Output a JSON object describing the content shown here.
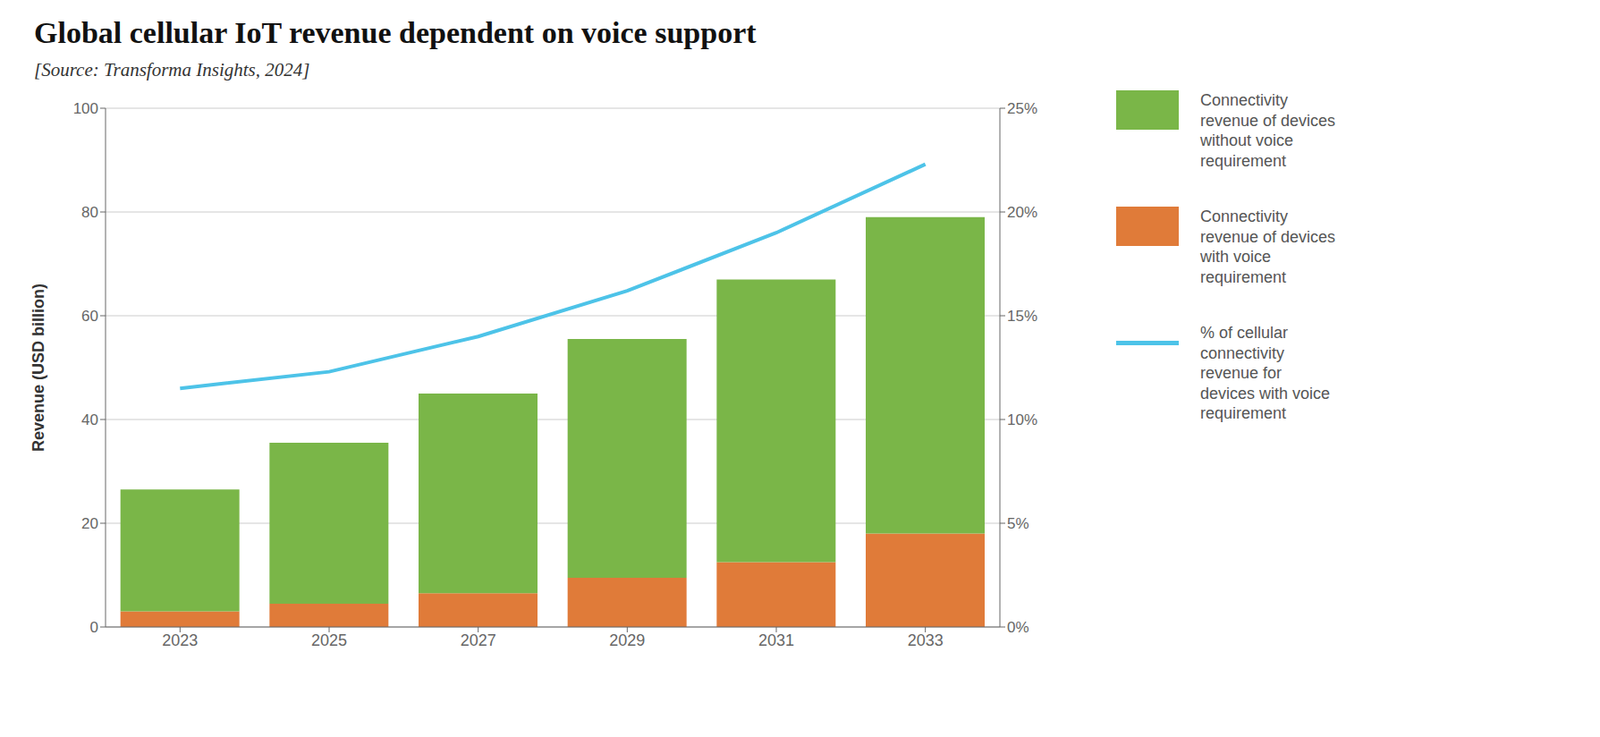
{
  "chart_data": {
    "type": "bar",
    "title": "Global cellular IoT revenue dependent on voice support",
    "subtitle": "[Source: Transforma Insights, 2024]",
    "categories": [
      "2023",
      "2025",
      "2027",
      "2029",
      "2031",
      "2033"
    ],
    "series": [
      {
        "name": "Connectivity\nrevenue of devices\nwithout voice\nrequirement",
        "color": "#7ab648",
        "type": "bar",
        "values": [
          23.5,
          31.0,
          38.5,
          46.0,
          54.5,
          61.0
        ]
      },
      {
        "name": "Connectivity\nrevenue of devices\nwith voice\nrequirement",
        "color": "#e07b39",
        "type": "bar",
        "values": [
          3.0,
          4.5,
          6.5,
          9.5,
          12.5,
          18.0
        ]
      },
      {
        "name": "% of cellular\nconnectivity\nrevenue for\ndevices with voice\nrequirement",
        "color": "#4dc3e8",
        "type": "line",
        "axis": "y2",
        "values": [
          11.5,
          12.3,
          14.0,
          16.2,
          19.0,
          22.3
        ]
      }
    ],
    "stacked": true,
    "ylabel": "Revenue (USD billion)",
    "ylim": [
      0,
      100
    ],
    "yticks": [
      0,
      20,
      40,
      60,
      80,
      100
    ],
    "y2lim": [
      0,
      25
    ],
    "y2ticks": [
      {
        "value": 0,
        "label": "0%"
      },
      {
        "value": 5,
        "label": "5%"
      },
      {
        "value": 10,
        "label": "10%"
      },
      {
        "value": 15,
        "label": "15%"
      },
      {
        "value": 20,
        "label": "20%"
      },
      {
        "value": 25,
        "label": "25%"
      }
    ],
    "grid": true
  }
}
